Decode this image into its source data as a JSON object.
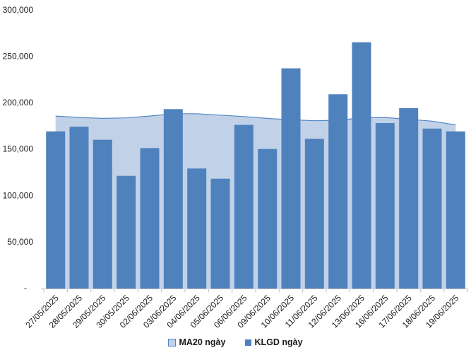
{
  "chart_data": {
    "type": "combo-area-bar",
    "title": "",
    "categories": [
      "27/05/2025",
      "28/05/2025",
      "29/05/2025",
      "30/05/2025",
      "02/06/2025",
      "03/06/2025",
      "04/06/2025",
      "05/06/2025",
      "06/06/2025",
      "09/06/2025",
      "10/06/2025",
      "11/06/2025",
      "12/06/2025",
      "13/06/2025",
      "16/06/2025",
      "17/06/2025",
      "18/06/2025",
      "19/06/2025"
    ],
    "series": [
      {
        "name": "MA20 ngày",
        "type": "area",
        "fill_color": "#C1D2E8",
        "line_color": "#5585C5",
        "values": [
          185500,
          184000,
          183000,
          183500,
          185500,
          188000,
          188000,
          186500,
          185000,
          183000,
          181500,
          180500,
          181000,
          183500,
          184000,
          182000,
          180000,
          176000
        ]
      },
      {
        "name": "KLGD ngày",
        "type": "bar",
        "fill_color": "#4F81BD",
        "values": [
          169000,
          174000,
          160000,
          121000,
          151000,
          193000,
          129000,
          118000,
          176000,
          150000,
          237000,
          161000,
          209000,
          265000,
          178000,
          194000,
          172000,
          169000
        ]
      }
    ],
    "y_axis": {
      "min": 0,
      "max": 300000,
      "tick_interval": 50000,
      "tick_labels": [
        "300,000",
        "250,000",
        "200,000",
        "150,000",
        "100,000",
        "50,000",
        "-"
      ]
    },
    "x_axis": {
      "label_rotation_deg": -45
    },
    "legend_position": "bottom",
    "grid": false,
    "colors": {
      "axis_line": "#BFBFBF",
      "text": "#1a1a1a",
      "background": "#FFFFFF"
    }
  }
}
